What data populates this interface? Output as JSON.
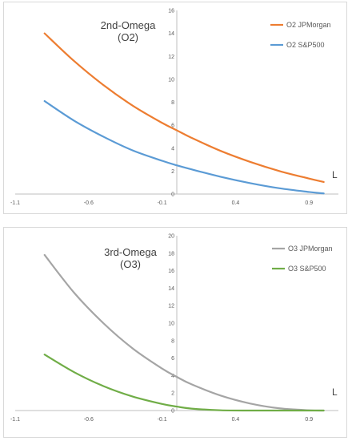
{
  "chart_data": [
    {
      "type": "line",
      "title_lines": [
        "2nd-Omega",
        "(O2)"
      ],
      "xlabel": "L",
      "ylabel": "",
      "xlim": [
        -1.1,
        1.1
      ],
      "ylim": [
        0,
        16
      ],
      "x_ticks": [
        "-1.1",
        "-0.6",
        "-0.1",
        "0.4",
        "0.9"
      ],
      "y_ticks": [
        "0",
        "2",
        "4",
        "6",
        "8",
        "10",
        "12",
        "14",
        "16"
      ],
      "grid": false,
      "legend_position": "top-right",
      "series": [
        {
          "name": "O2 JPMorgan",
          "color": "#ed7d31",
          "x": [
            -0.9,
            -0.7,
            -0.5,
            -0.3,
            -0.1,
            0.0,
            0.1,
            0.3,
            0.5,
            0.7,
            0.9,
            1.0
          ],
          "y": [
            14.0,
            11.6,
            9.5,
            7.7,
            6.2,
            5.55,
            4.9,
            3.75,
            2.8,
            2.0,
            1.35,
            1.05
          ]
        },
        {
          "name": "O2 S&P500",
          "color": "#5b9bd5",
          "x": [
            -0.9,
            -0.7,
            -0.5,
            -0.3,
            -0.1,
            0.0,
            0.1,
            0.3,
            0.5,
            0.7,
            0.9,
            1.0
          ],
          "y": [
            8.1,
            6.4,
            5.0,
            3.8,
            2.9,
            2.5,
            2.15,
            1.5,
            0.95,
            0.5,
            0.18,
            0.05
          ]
        }
      ]
    },
    {
      "type": "line",
      "title_lines": [
        "3rd-Omega",
        "(O3)"
      ],
      "xlabel": "L",
      "ylabel": "",
      "xlim": [
        -1.1,
        1.1
      ],
      "ylim": [
        0,
        20
      ],
      "x_ticks": [
        "-1.1",
        "-0.6",
        "-0.1",
        "0.4",
        "0.9"
      ],
      "y_ticks": [
        "0",
        "2",
        "4",
        "6",
        "8",
        "10",
        "12",
        "14",
        "16",
        "18",
        "20"
      ],
      "grid": false,
      "legend_position": "top-right",
      "series": [
        {
          "name": "O3 JPMorgan",
          "color": "#a5a5a5",
          "x": [
            -0.9,
            -0.7,
            -0.5,
            -0.3,
            -0.1,
            0.0,
            0.1,
            0.3,
            0.5,
            0.7,
            0.9,
            1.0
          ],
          "y": [
            17.8,
            13.5,
            10.0,
            7.1,
            4.8,
            3.85,
            3.0,
            1.7,
            0.8,
            0.25,
            0.03,
            0.0
          ]
        },
        {
          "name": "O3 S&P500",
          "color": "#70ad47",
          "x": [
            -0.9,
            -0.7,
            -0.5,
            -0.3,
            -0.1,
            0.0,
            0.1,
            0.3,
            0.5,
            0.7,
            0.9,
            1.0
          ],
          "y": [
            6.4,
            4.4,
            2.8,
            1.6,
            0.75,
            0.45,
            0.22,
            0.03,
            0.0,
            0.0,
            0.0,
            0.0
          ]
        }
      ]
    }
  ]
}
